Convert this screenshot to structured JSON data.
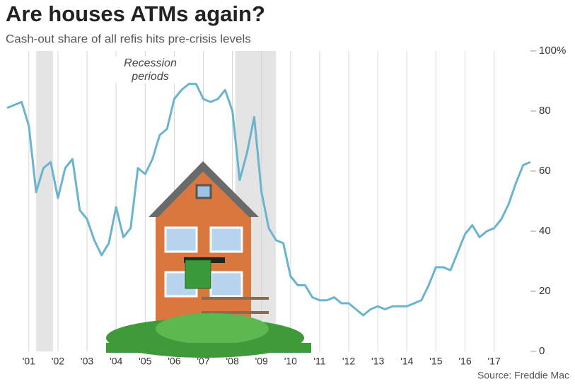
{
  "chart_data": {
    "type": "line",
    "title": "Are houses ATMs again?",
    "subtitle": "Cash-out share of all refis hits pre-crisis levels",
    "annotation": "Recession periods",
    "source": "Source: Freddie Mac",
    "x": [
      2000.25,
      2000.5,
      2000.75,
      2001,
      2001.25,
      2001.5,
      2001.75,
      2002,
      2002.25,
      2002.5,
      2002.75,
      2003,
      2003.25,
      2003.5,
      2003.75,
      2004,
      2004.25,
      2004.5,
      2004.75,
      2005,
      2005.25,
      2005.5,
      2005.75,
      2006,
      2006.25,
      2006.5,
      2006.75,
      2007,
      2007.25,
      2007.5,
      2007.75,
      2008,
      2008.25,
      2008.5,
      2008.75,
      2009,
      2009.25,
      2009.5,
      2009.75,
      2010,
      2010.25,
      2010.5,
      2010.75,
      2011,
      2011.25,
      2011.5,
      2011.75,
      2012,
      2012.25,
      2012.5,
      2012.75,
      2013,
      2013.25,
      2013.5,
      2013.75,
      2014,
      2014.25,
      2014.5,
      2014.75,
      2015,
      2015.25,
      2015.5,
      2015.75,
      2016,
      2016.25,
      2016.5,
      2016.75,
      2017,
      2017.25,
      2017.5,
      2017.75,
      2018,
      2018.25
    ],
    "series": [
      {
        "color": "#6ab4cf",
        "values": [
          81,
          82,
          83,
          75,
          53,
          61,
          63,
          51,
          61,
          64,
          47,
          44,
          37,
          32,
          36,
          48,
          38,
          41,
          61,
          59,
          64,
          72,
          74,
          84,
          87,
          89,
          89,
          84,
          83,
          84,
          87,
          80,
          57,
          66,
          78,
          53,
          41,
          37,
          36,
          25,
          22,
          22,
          18,
          17,
          17,
          18,
          16,
          16,
          14,
          12,
          14,
          15,
          14,
          15,
          15,
          15,
          16,
          17,
          22,
          28,
          28,
          27,
          33,
          39,
          42,
          38,
          40,
          41,
          44,
          49,
          56,
          62,
          63
        ]
      }
    ],
    "recessions": [
      [
        2001.25,
        2001.83
      ],
      [
        2008.1,
        2009.5
      ]
    ],
    "xlim": [
      2000.25,
      2018.25
    ],
    "xticks": [
      {
        "value": 2001,
        "label": "'01"
      },
      {
        "value": 2002,
        "label": "'02"
      },
      {
        "value": 2003,
        "label": "'03"
      },
      {
        "value": 2004,
        "label": "'04"
      },
      {
        "value": 2005,
        "label": "'05"
      },
      {
        "value": 2006,
        "label": "'06"
      },
      {
        "value": 2007,
        "label": "'07"
      },
      {
        "value": 2008,
        "label": "'08"
      },
      {
        "value": 2009,
        "label": "'09"
      },
      {
        "value": 2010,
        "label": "'10"
      },
      {
        "value": 2011,
        "label": "'11"
      },
      {
        "value": 2012,
        "label": "'12"
      },
      {
        "value": 2013,
        "label": "'13"
      },
      {
        "value": 2014,
        "label": "'14"
      },
      {
        "value": 2015,
        "label": "'15"
      },
      {
        "value": 2016,
        "label": "'16"
      },
      {
        "value": 2017,
        "label": "'17"
      }
    ],
    "ylim": [
      0,
      100
    ],
    "yticks": [
      0,
      20,
      40,
      60,
      80,
      {
        "value": 100,
        "label": "100%"
      }
    ],
    "grid": true
  }
}
